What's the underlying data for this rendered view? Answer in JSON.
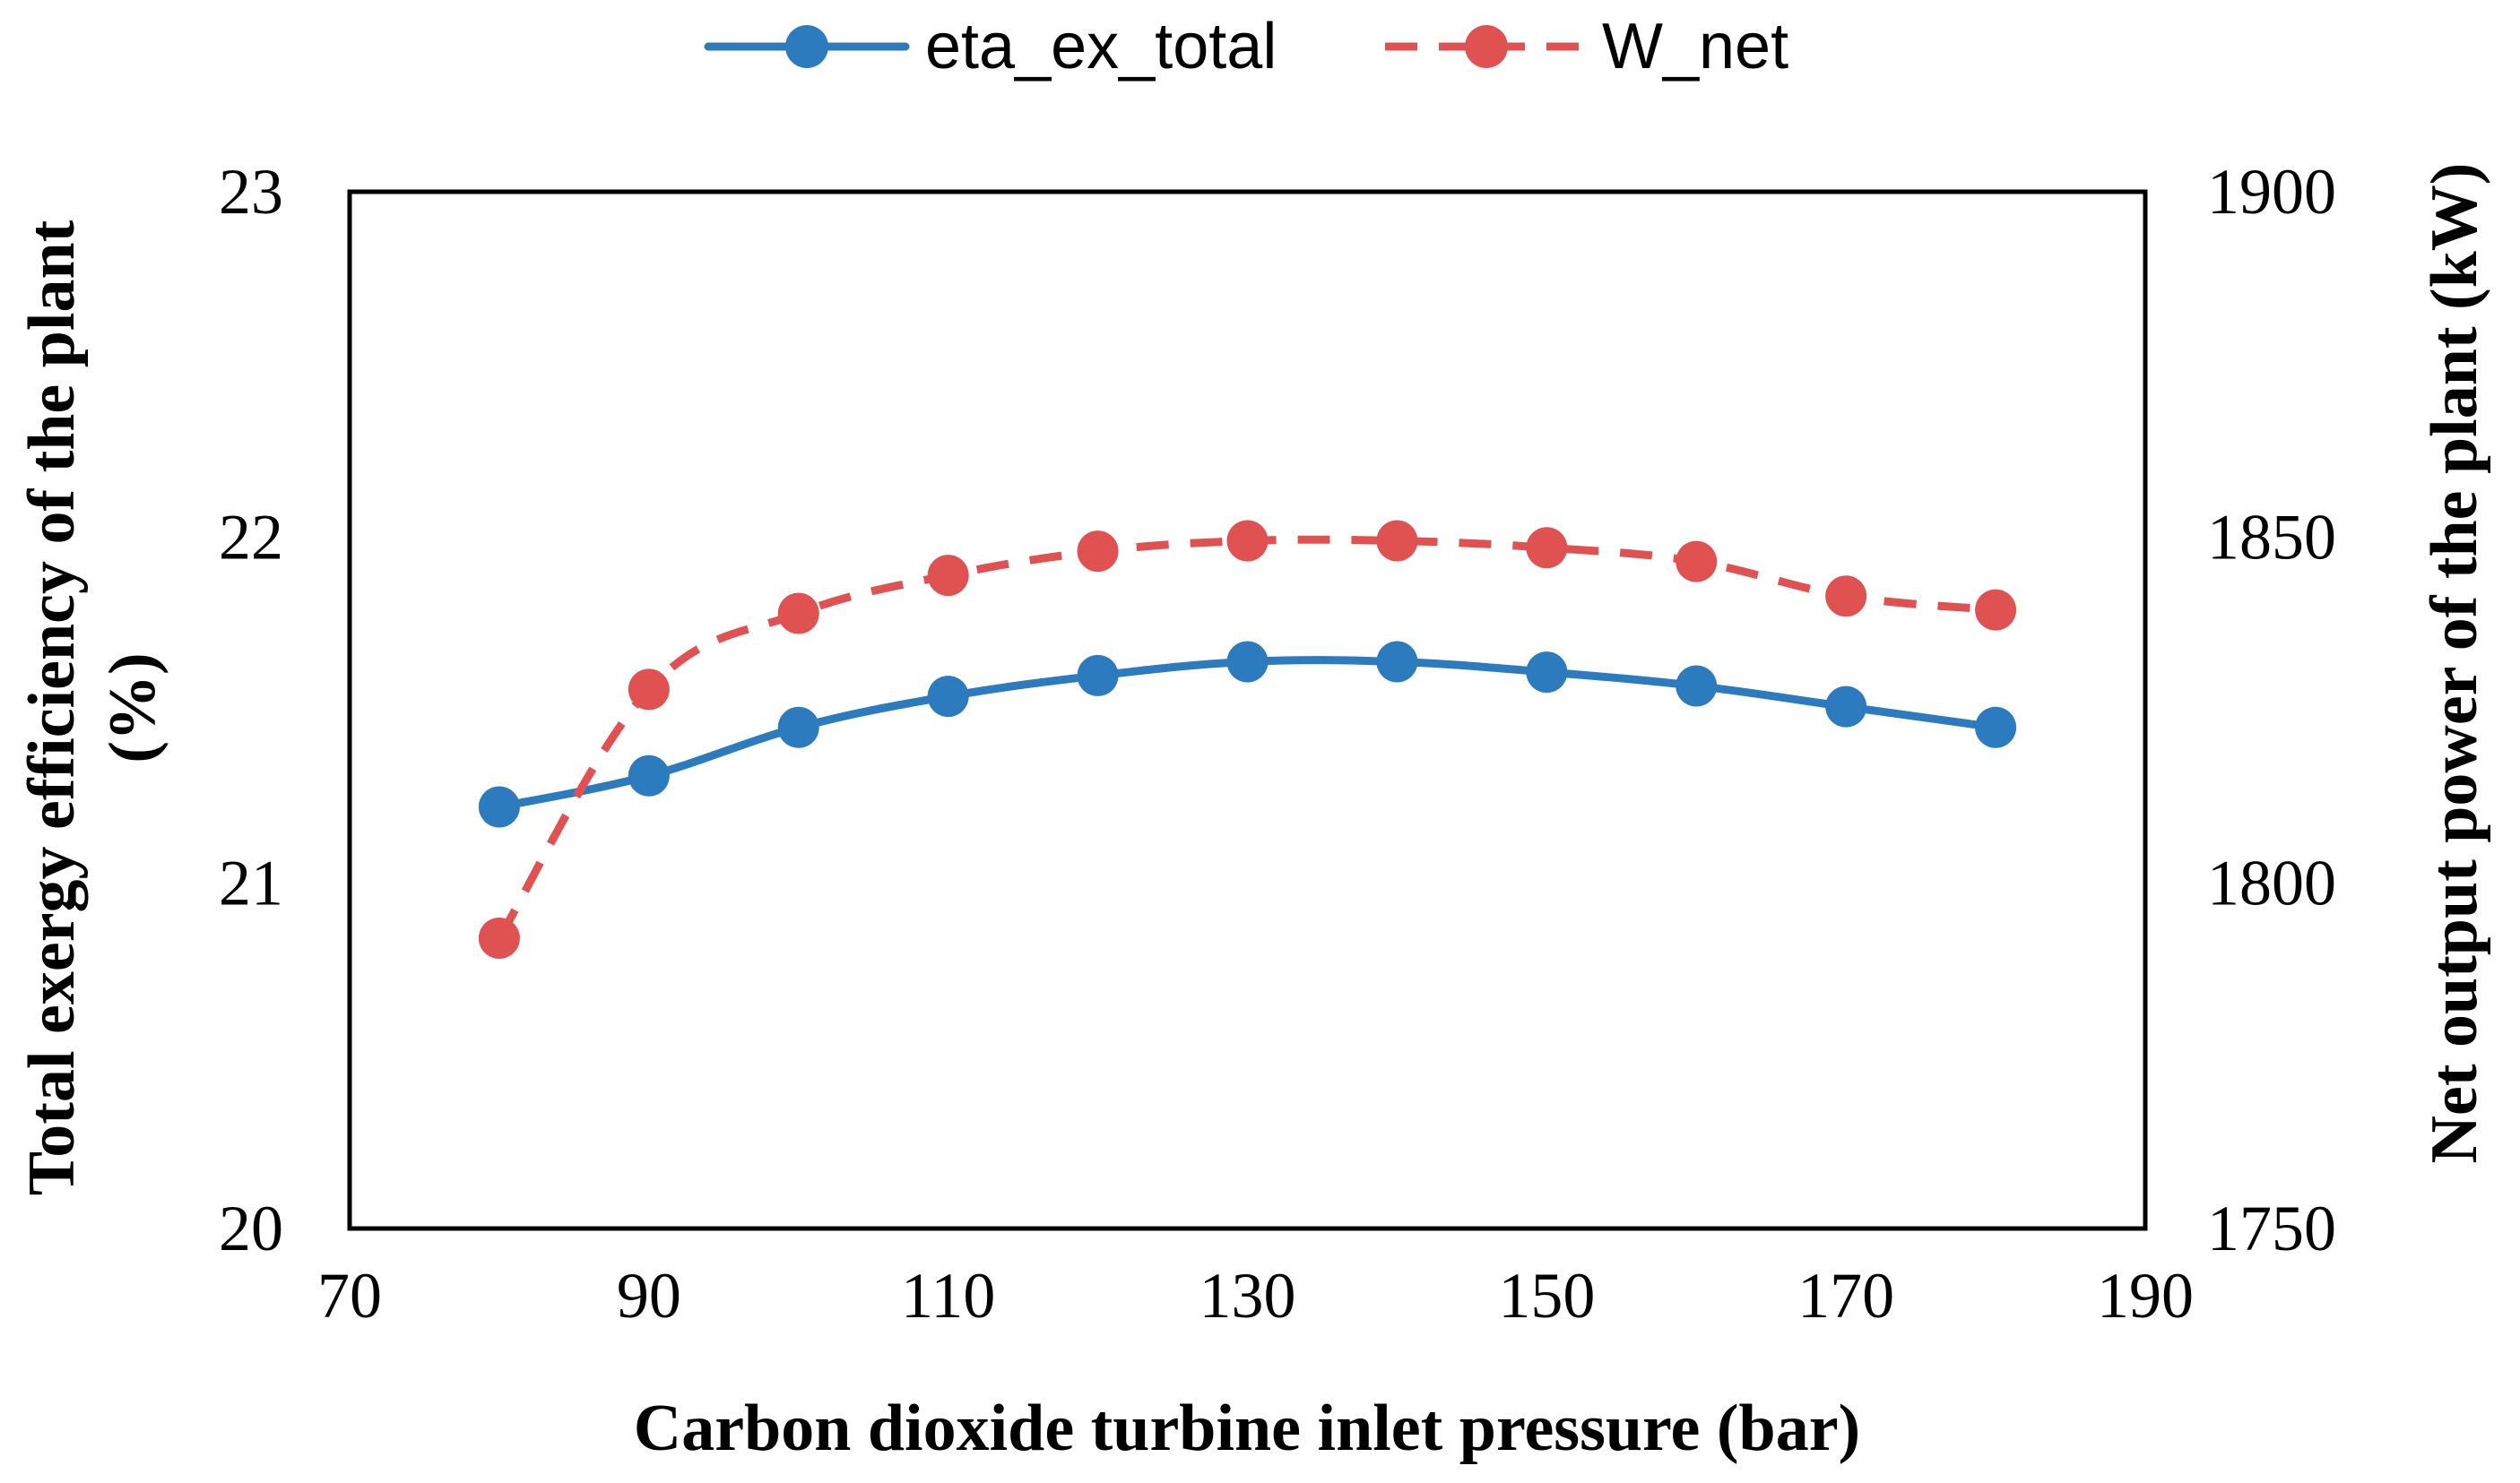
{
  "chart_data": {
    "type": "line",
    "title": "",
    "xlabel": "Carbon dioxide turbine inlet pressure (bar)",
    "ylabel_left": [
      "Total exergy efficiency of the plant",
      "(%)"
    ],
    "ylabel_right": "Net output power of the plant (kW)",
    "xlim": [
      70,
      190
    ],
    "xticks": [
      70,
      90,
      110,
      130,
      150,
      170,
      190
    ],
    "ylim_left": [
      20,
      23
    ],
    "yticks_left": [
      20,
      21,
      22,
      23
    ],
    "ylim_right": [
      1750,
      1900
    ],
    "yticks_right": [
      1750,
      1800,
      1850,
      1900
    ],
    "grid": false,
    "legend_position": "top-center",
    "x": [
      80,
      90,
      100,
      110,
      120,
      130,
      140,
      150,
      160,
      170,
      180
    ],
    "series": [
      {
        "name": "eta_ex_total",
        "axis": "left",
        "color": "#2B7BBE",
        "line_style": "solid",
        "values": [
          21.22,
          21.31,
          21.45,
          21.54,
          21.6,
          21.64,
          21.64,
          21.61,
          21.57,
          21.51,
          21.45
        ]
      },
      {
        "name": "W_net",
        "axis": "right",
        "color": "#E05252",
        "line_style": "dashed",
        "values": [
          1792,
          1828,
          1839,
          1844.5,
          1848,
          1849.5,
          1849.5,
          1848.5,
          1846.5,
          1841.5,
          1839.5
        ]
      }
    ]
  }
}
